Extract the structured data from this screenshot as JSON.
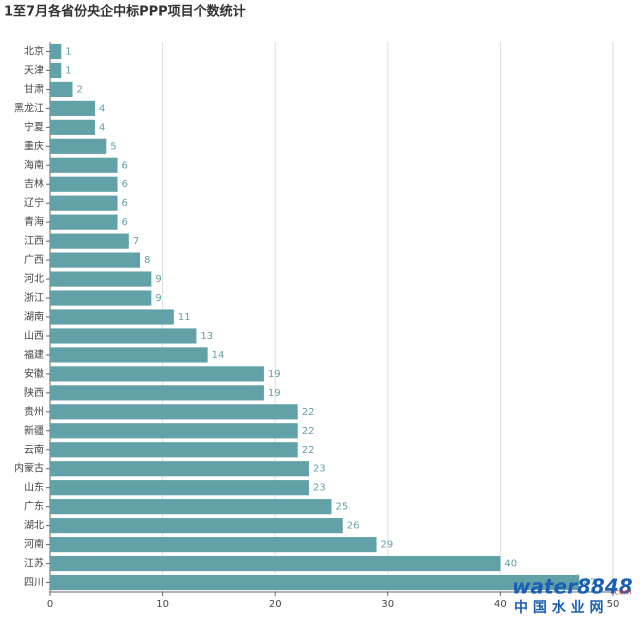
{
  "chart_data": {
    "type": "hbar",
    "title": "1至7月各省份央企中标PPP项目个数统计",
    "categories": [
      "北京",
      "天津",
      "甘肃",
      "黑龙江",
      "宁夏",
      "重庆",
      "海南",
      "吉林",
      "辽宁",
      "青海",
      "江西",
      "广西",
      "河北",
      "浙江",
      "湖南",
      "山西",
      "福建",
      "安徽",
      "陕西",
      "贵州",
      "新疆",
      "云南",
      "内蒙古",
      "山东",
      "广东",
      "湖北",
      "河南",
      "江苏",
      "四川"
    ],
    "values": [
      1,
      1,
      2,
      4,
      4,
      5,
      6,
      6,
      6,
      6,
      7,
      8,
      9,
      9,
      11,
      13,
      14,
      19,
      19,
      22,
      22,
      22,
      23,
      23,
      25,
      26,
      29,
      40,
      47
    ],
    "color": "#62a1a8",
    "xlim": [
      0,
      50
    ],
    "xticks": [
      0,
      10,
      20,
      30,
      40,
      50
    ],
    "grid": true
  },
  "watermark": {
    "brand": "water8848",
    "domain": ".com",
    "name": "中 国 水 业 网"
  }
}
